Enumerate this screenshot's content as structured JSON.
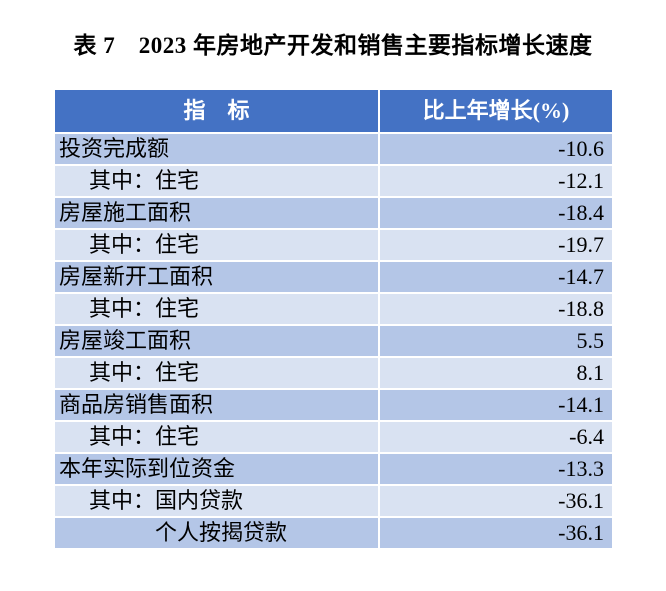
{
  "caption": "表 7　2023 年房地产开发和销售主要指标增长速度",
  "colors": {
    "header_bg": "#4472C4",
    "header_text": "#ffffff",
    "band_dark": "#B4C6E7",
    "band_light": "#D9E2F2",
    "body_text": "#000000"
  },
  "table": {
    "header": {
      "indicator": "指　标",
      "growth": "比上年增长(%)"
    },
    "rows": [
      {
        "label": "投资完成额",
        "value": "-10.6",
        "indent": "0"
      },
      {
        "label": "其中：住宅",
        "value": "-12.1",
        "indent": "1"
      },
      {
        "label": "房屋施工面积",
        "value": "-18.4",
        "indent": "0"
      },
      {
        "label": "其中：住宅",
        "value": "-19.7",
        "indent": "1"
      },
      {
        "label": "房屋新开工面积",
        "value": "-14.7",
        "indent": "0"
      },
      {
        "label": "其中：住宅",
        "value": "-18.8",
        "indent": "1"
      },
      {
        "label": "房屋竣工面积",
        "value": "5.5",
        "indent": "0"
      },
      {
        "label": "其中：住宅",
        "value": "8.1",
        "indent": "1"
      },
      {
        "label": "商品房销售面积",
        "value": "-14.1",
        "indent": "0"
      },
      {
        "label": "其中：住宅",
        "value": "-6.4",
        "indent": "1"
      },
      {
        "label": "本年实际到位资金",
        "value": "-13.3",
        "indent": "0"
      },
      {
        "label": "其中：国内贷款",
        "value": "-36.1",
        "indent": "1"
      },
      {
        "label": "个人按揭贷款",
        "value": "-36.1",
        "indent": "2"
      }
    ]
  },
  "chart_data": {
    "type": "table",
    "title": "表 7　2023 年房地产开发和销售主要指标增长速度",
    "columns": [
      "指　标",
      "比上年增长(%)"
    ],
    "rows": [
      [
        "投资完成额",
        -10.6
      ],
      [
        "其中：住宅",
        -12.1
      ],
      [
        "房屋施工面积",
        -18.4
      ],
      [
        "其中：住宅",
        -19.7
      ],
      [
        "房屋新开工面积",
        -14.7
      ],
      [
        "其中：住宅",
        -18.8
      ],
      [
        "房屋竣工面积",
        5.5
      ],
      [
        "其中：住宅",
        8.1
      ],
      [
        "商品房销售面积",
        -14.1
      ],
      [
        "其中：住宅",
        -6.4
      ],
      [
        "本年实际到位资金",
        -13.3
      ],
      [
        "其中：国内贷款",
        -36.1
      ],
      [
        "个人按揭贷款",
        -36.1
      ]
    ],
    "unit": "percent",
    "notes": "Banded table: header #4472C4, odd data rows #B4C6E7, even data rows #D9E2F2"
  }
}
